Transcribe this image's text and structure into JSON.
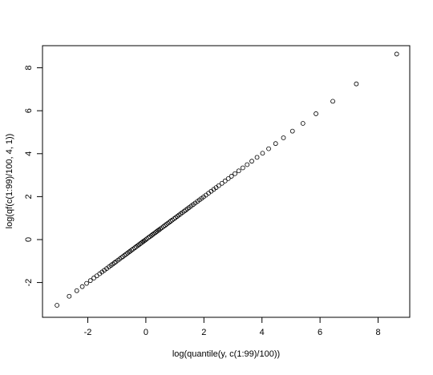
{
  "chart_data": {
    "type": "scatter",
    "xlabel": "log(quantile(y, c(1:99)/100))",
    "ylabel": "log(qf(c(1:99)/100, 4, 1))",
    "x": [
      -3.06,
      -2.64,
      -2.38,
      -2.19,
      -2.04,
      -1.91,
      -1.79,
      -1.69,
      -1.59,
      -1.51,
      -1.43,
      -1.35,
      -1.27,
      -1.2,
      -1.14,
      -1.08,
      -1.03,
      -0.96,
      -0.9,
      -0.84,
      -0.79,
      -0.73,
      -0.68,
      -0.63,
      -0.58,
      -0.54,
      -0.49,
      -0.44,
      -0.38,
      -0.33,
      -0.28,
      -0.24,
      -0.19,
      -0.14,
      -0.1,
      -0.06,
      -0.02,
      0.03,
      0.09,
      0.14,
      0.19,
      0.23,
      0.28,
      0.33,
      0.37,
      0.42,
      0.46,
      0.5,
      0.55,
      0.61,
      0.66,
      0.71,
      0.76,
      0.81,
      0.86,
      0.91,
      0.97,
      1.02,
      1.08,
      1.14,
      1.2,
      1.26,
      1.32,
      1.37,
      1.43,
      1.49,
      1.56,
      1.63,
      1.7,
      1.78,
      1.85,
      1.92,
      1.99,
      2.07,
      2.16,
      2.25,
      2.34,
      2.42,
      2.51,
      2.62,
      2.73,
      2.84,
      2.95,
      3.07,
      3.2,
      3.34,
      3.49,
      3.65,
      3.83,
      4.02,
      4.23,
      4.47,
      4.74,
      5.05,
      5.41,
      5.86,
      6.44,
      7.25,
      8.64
    ],
    "values": [
      -3.06,
      -2.64,
      -2.38,
      -2.19,
      -2.04,
      -1.91,
      -1.79,
      -1.69,
      -1.59,
      -1.51,
      -1.43,
      -1.35,
      -1.27,
      -1.2,
      -1.14,
      -1.08,
      -1.03,
      -0.96,
      -0.9,
      -0.84,
      -0.79,
      -0.73,
      -0.68,
      -0.63,
      -0.58,
      -0.54,
      -0.49,
      -0.44,
      -0.38,
      -0.33,
      -0.28,
      -0.24,
      -0.19,
      -0.14,
      -0.1,
      -0.06,
      -0.02,
      0.03,
      0.09,
      0.14,
      0.19,
      0.23,
      0.28,
      0.33,
      0.37,
      0.42,
      0.46,
      0.5,
      0.55,
      0.61,
      0.66,
      0.71,
      0.76,
      0.81,
      0.86,
      0.91,
      0.97,
      1.02,
      1.08,
      1.14,
      1.2,
      1.26,
      1.32,
      1.37,
      1.43,
      1.49,
      1.56,
      1.63,
      1.7,
      1.78,
      1.85,
      1.92,
      1.99,
      2.07,
      2.16,
      2.25,
      2.34,
      2.42,
      2.51,
      2.62,
      2.73,
      2.84,
      2.95,
      3.07,
      3.2,
      3.34,
      3.49,
      3.65,
      3.83,
      4.02,
      4.23,
      4.47,
      4.74,
      5.05,
      5.41,
      5.86,
      6.44,
      7.25,
      8.64
    ],
    "color": "#000000",
    "xlim": [
      -3.56,
      9.09
    ],
    "ylim": [
      -3.62,
      9.03
    ],
    "xticks": [
      -2,
      0,
      2,
      4,
      6,
      8
    ],
    "yticks": [
      -2,
      0,
      2,
      4,
      6,
      8
    ],
    "grid": false
  }
}
